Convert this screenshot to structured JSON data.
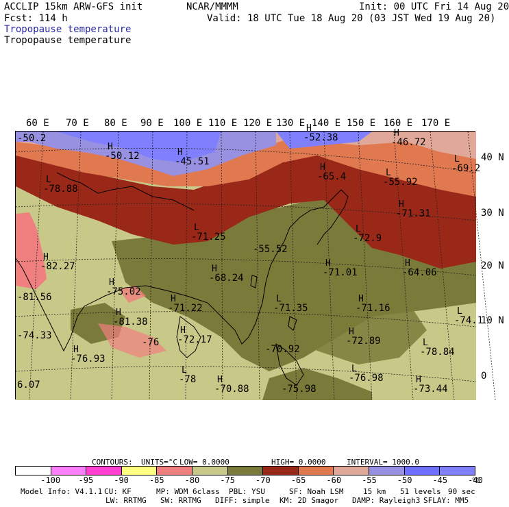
{
  "header": {
    "model": "ACCLIP 15km ARW-GFS init",
    "fcst": "Fcst:  114 h",
    "center": "NCAR/MMMM",
    "init": "Init: 00 UTC Fri 14 Aug 20",
    "valid": "Valid: 18 UTC Tue 18 Aug 20 (03 JST Wed 19 Aug 20)",
    "field_title_1": "Tropopause temperature",
    "field_title_2": "Tropopause temperature"
  },
  "map": {
    "longitude_labels": [
      "60 E",
      "70 E",
      "80 E",
      "90 E",
      "100 E",
      "110 E",
      "120 E",
      "130 E",
      "140 E",
      "150 E",
      "160 E",
      "170 E"
    ],
    "latitude_labels": [
      "40 N",
      "30 N",
      "20 N",
      "10 N",
      "0"
    ],
    "centers": [
      {
        "type": "",
        "value": "-50.2"
      },
      {
        "type": "H",
        "value": "-50.12"
      },
      {
        "type": "H",
        "value": "-45.51"
      },
      {
        "type": "H",
        "value": "-52.38"
      },
      {
        "type": "H",
        "value": "-46.72"
      },
      {
        "type": "L",
        "value": "-69.2"
      },
      {
        "type": "L",
        "value": "-78.88"
      },
      {
        "type": "H",
        "value": "-65.4"
      },
      {
        "type": "L",
        "value": "-55.92"
      },
      {
        "type": "H",
        "value": "-71.31"
      },
      {
        "type": "L",
        "value": "-71.25"
      },
      {
        "type": "",
        "value": "-55.52"
      },
      {
        "type": "L",
        "value": "-72.9"
      },
      {
        "type": "H",
        "value": "-82.27"
      },
      {
        "type": "H",
        "value": "-68.24"
      },
      {
        "type": "H",
        "value": "-71.01"
      },
      {
        "type": "H",
        "value": "-64.06"
      },
      {
        "type": "",
        "value": "-81.56"
      },
      {
        "type": "H",
        "value": "-75.02"
      },
      {
        "type": "H",
        "value": "-71.22"
      },
      {
        "type": "L",
        "value": "-71.35"
      },
      {
        "type": "H",
        "value": "-71.16"
      },
      {
        "type": "H",
        "value": "-81.38"
      },
      {
        "type": "",
        "value": "-74.33"
      },
      {
        "type": "H",
        "value": "-72.17"
      },
      {
        "type": "H",
        "value": "-72.89"
      },
      {
        "type": "L",
        "value": "-74.1"
      },
      {
        "type": "H",
        "value": "-76.93"
      },
      {
        "type": "",
        "value": "-76"
      },
      {
        "type": "",
        "value": "-70.92"
      },
      {
        "type": "L",
        "value": "-78.84"
      },
      {
        "type": "L",
        "value": "-78"
      },
      {
        "type": "L",
        "value": "-76.98"
      },
      {
        "type": "",
        "value": "6.07"
      },
      {
        "type": "H",
        "value": "-70.88"
      },
      {
        "type": "",
        "value": "-75.98"
      },
      {
        "type": "H",
        "value": "-73.44"
      }
    ]
  },
  "contours_line": {
    "contours": "CONTOURS:",
    "units": "UNITS=°C",
    "low": "LOW=  0.0000",
    "high": "HIGH=  0.0000",
    "interval": "INTERVAL=  1000.0"
  },
  "colorbar": {
    "colors": [
      "#ffffff",
      "#ff80ff",
      "#ff40d0",
      "#ffff80",
      "#f08080",
      "#c8c888",
      "#7a7a3a",
      "#9a2818",
      "#e07850",
      "#e0a898",
      "#9890e0",
      "#7070ff",
      "#8080ff"
    ],
    "labels": [
      "-100",
      "-95",
      "-90",
      "-85",
      "-80",
      "-75",
      "-70",
      "-65",
      "-60",
      "-55",
      "-50",
      "-45",
      "-40"
    ],
    "unit": "°C"
  },
  "footer": {
    "line1": [
      "Model Info: V4.1.1",
      "CU: KF",
      "MP: WDM 6class",
      "PBL: YSU",
      "SF: Noah LSM",
      "15 km",
      "51 levels",
      "90 sec"
    ],
    "line2": [
      "LW: RRTMG",
      "SW: RRTMG",
      "DIFF: simple",
      "KM: 2D Smagor",
      "DAMP: Rayleigh3",
      "SFLAY: MM5"
    ]
  }
}
